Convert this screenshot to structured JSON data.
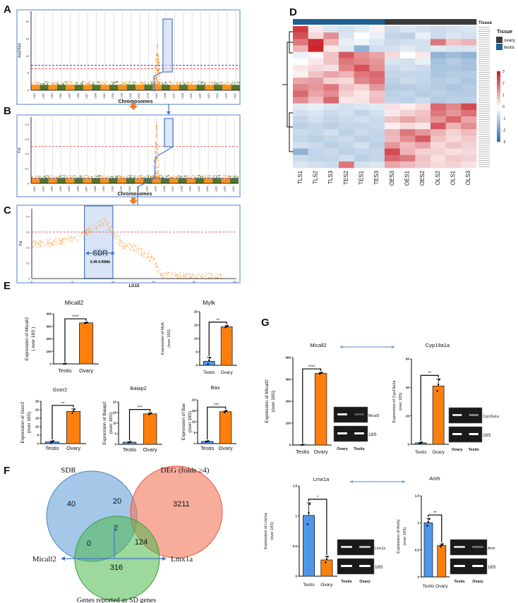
{
  "panel_labels": {
    "A": "A",
    "B": "B",
    "C": "C",
    "D": "D",
    "E": "E",
    "F": "F",
    "G": "G"
  },
  "colors": {
    "testis_bar": "#4d97ea",
    "ovary_bar": "#ff7f0e",
    "manhattan_odd": "#f7931e",
    "manhattan_even": "#55752a",
    "frame": "#6f97d6",
    "highlight": "#c9d9f2",
    "arrow": "#ee7d2a",
    "tissue_testis": "#1f5f93",
    "tissue_ovary": "#3b3b3b",
    "heat_high": "#c81d25",
    "heat_low": "#2166ac"
  },
  "chart_data": [
    {
      "id": "A",
      "type": "scatter",
      "subtype": "manhattan",
      "xlabel": "Chromosomes",
      "ylabel": "-log10(p)",
      "ylim": [
        0,
        23
      ],
      "yticks": [
        0,
        5,
        10,
        15,
        20
      ],
      "categories": [
        "LG01",
        "LG02",
        "LG03",
        "LG04",
        "LG05",
        "LG06",
        "LG07",
        "LG08",
        "LG09",
        "LG10",
        "LG11",
        "LG12",
        "LG13",
        "LG14",
        "LG15",
        "LG16",
        "LG17",
        "LG18",
        "LG19",
        "LG20",
        "LG21",
        "LG22",
        "LG23",
        "LG24"
      ],
      "baseline": 1.6,
      "peak": {
        "chromosome": "LG15",
        "max": 13.5
      },
      "thresholds": [
        {
          "value": 7.3,
          "color": "#2b2bd9"
        },
        {
          "value": 6.3,
          "color": "#e83232"
        }
      ]
    },
    {
      "id": "B",
      "type": "scatter",
      "subtype": "manhattan",
      "xlabel": "Chromosomes",
      "ylabel": "Fst",
      "ylim": [
        0,
        0.45
      ],
      "yticks": [
        0.0,
        0.1,
        0.2,
        0.3,
        0.4
      ],
      "categories": [
        "LG01",
        "LG02",
        "LG03",
        "LG04",
        "LG05",
        "LG06",
        "LG07",
        "LG08",
        "LG09",
        "LG10",
        "LG11",
        "LG12",
        "LG13",
        "LG14",
        "LG15",
        "LG16",
        "LG17",
        "LG18",
        "LG19",
        "LG20",
        "LG21",
        "LG22",
        "LG23",
        "LG24"
      ],
      "baseline": 0.035,
      "peak": {
        "chromosome": "LG15",
        "max": 0.41
      },
      "thresholds": [
        {
          "value": 0.25,
          "color": "#e83232"
        },
        {
          "value": 0.035,
          "color": "#2b2bd9"
        }
      ]
    },
    {
      "id": "C",
      "type": "scatter",
      "xlabel": "LG15",
      "ylabel": "Fst",
      "xlim": [
        0,
        25
      ],
      "xticks": [
        0,
        5,
        10,
        15,
        20,
        25
      ],
      "ylim": [
        0,
        0.45
      ],
      "yticks": [
        0.0,
        0.1,
        0.2,
        0.3,
        0.4
      ],
      "threshold": 0.3,
      "region": {
        "label": "SDR",
        "range_label": "6.49-9.99Mb",
        "start": 6.49,
        "end": 9.99
      },
      "profile": [
        [
          0,
          0.22
        ],
        [
          2,
          0.23
        ],
        [
          4,
          0.24
        ],
        [
          6,
          0.27
        ],
        [
          7,
          0.31
        ],
        [
          8,
          0.34
        ],
        [
          9,
          0.37
        ],
        [
          9.99,
          0.3
        ],
        [
          11,
          0.22
        ],
        [
          13,
          0.19
        ],
        [
          15,
          0.12
        ],
        [
          16,
          0.02
        ],
        [
          20,
          0.01
        ],
        [
          25,
          0.01
        ]
      ]
    },
    {
      "id": "D",
      "type": "heatmap",
      "columns": [
        "TLS1",
        "TLS2",
        "TLS3",
        "TES2",
        "TES1",
        "TES3",
        "OES3",
        "OES1",
        "OES2",
        "OLS2",
        "OLS1",
        "OLS3"
      ],
      "tissue": [
        "testis",
        "testis",
        "testis",
        "testis",
        "testis",
        "testis",
        "ovary",
        "ovary",
        "ovary",
        "ovary",
        "ovary",
        "ovary"
      ],
      "annotation_label": "Tissue",
      "legend_title": "Tissue",
      "legend_items": [
        "ovary",
        "testis"
      ],
      "scale": [
        -3,
        3
      ],
      "scale_ticks": [
        3,
        2,
        1,
        0,
        -1,
        -2,
        -3
      ],
      "values": [
        [
          2.6,
          0.3,
          -0.5,
          -0.6,
          -0.4,
          0.2,
          -0.7,
          -0.5,
          -0.6,
          -0.7,
          -0.6,
          -0.5
        ],
        [
          2.3,
          0.5,
          1.5,
          -0.5,
          0.0,
          -0.3,
          -0.8,
          -0.9,
          -0.3,
          -0.7,
          -0.5,
          -0.6
        ],
        [
          1.8,
          2.8,
          1.0,
          -0.3,
          -0.2,
          -0.5,
          -0.7,
          -0.6,
          -0.6,
          1.8,
          0.8,
          1.0
        ],
        [
          1.0,
          2.9,
          0.3,
          -0.4,
          -1.5,
          -0.6,
          -0.6,
          -0.4,
          -0.6,
          -0.4,
          -0.5,
          -0.5
        ],
        [
          -0.3,
          0.1,
          0.8,
          2.2,
          1.5,
          1.2,
          0.5,
          0.0,
          0.3,
          -1.5,
          -1.3,
          -1.5
        ],
        [
          0.0,
          0.3,
          0.8,
          1.8,
          1.6,
          1.4,
          -0.5,
          -0.6,
          -0.3,
          -1.2,
          -1.0,
          -1.2
        ],
        [
          0.3,
          0.5,
          0.4,
          1.6,
          2.3,
          1.5,
          -0.7,
          -0.6,
          -0.7,
          -1.1,
          -1.1,
          -1.2
        ],
        [
          0.2,
          0.8,
          1.2,
          1.0,
          1.8,
          2.0,
          -0.8,
          -0.8,
          -0.8,
          -1.1,
          -1.0,
          -1.0
        ],
        [
          1.2,
          1.3,
          0.6,
          0.5,
          1.6,
          1.9,
          -0.9,
          -0.7,
          -0.8,
          -1.0,
          -0.9,
          -1.1
        ],
        [
          1.6,
          1.4,
          1.8,
          0.8,
          0.6,
          1.4,
          -1.0,
          -1.0,
          -0.9,
          -1.0,
          -1.1,
          -1.0
        ],
        [
          2.0,
          1.2,
          1.5,
          0.6,
          0.3,
          0.8,
          -0.9,
          -0.8,
          -1.0,
          -0.9,
          -1.0,
          -1.0
        ],
        [
          1.5,
          0.9,
          2.0,
          0.3,
          0.4,
          0.9,
          -0.8,
          -0.9,
          -0.7,
          -1.0,
          -0.9,
          -0.9
        ],
        [
          -0.4,
          -0.3,
          -0.5,
          -0.6,
          -0.5,
          -0.4,
          0.4,
          0.2,
          0.5,
          2.0,
          1.6,
          2.4
        ],
        [
          -0.6,
          -0.5,
          -0.7,
          -0.6,
          -0.8,
          -0.6,
          0.3,
          0.6,
          0.8,
          1.8,
          1.4,
          1.9
        ],
        [
          -0.8,
          -0.6,
          -0.8,
          -0.7,
          -0.6,
          -0.7,
          0.8,
          1.2,
          0.9,
          1.4,
          2.0,
          1.2
        ],
        [
          -0.9,
          -0.8,
          -0.9,
          -0.8,
          -0.8,
          -0.7,
          0.2,
          0.5,
          0.3,
          2.2,
          1.0,
          1.5
        ],
        [
          -0.7,
          -0.8,
          -0.6,
          -0.9,
          -0.7,
          -0.8,
          1.0,
          1.8,
          1.4,
          1.0,
          0.6,
          0.9
        ],
        [
          -0.8,
          -0.9,
          -0.8,
          -0.7,
          -0.9,
          -0.8,
          0.9,
          1.5,
          2.2,
          0.8,
          0.5,
          0.7
        ],
        [
          -0.6,
          -0.7,
          -0.9,
          -0.8,
          -0.6,
          -0.9,
          1.4,
          0.9,
          1.2,
          0.5,
          0.8,
          0.6
        ],
        [
          -1.5,
          -0.8,
          -0.7,
          -0.9,
          -0.8,
          -0.8,
          2.4,
          1.0,
          0.6,
          0.6,
          0.4,
          0.5
        ],
        [
          -0.7,
          -0.8,
          -0.8,
          -0.6,
          -0.9,
          -0.8,
          2.0,
          1.8,
          0.8,
          0.4,
          0.7,
          0.6
        ],
        [
          -0.5,
          -0.6,
          -0.7,
          1.8,
          -0.6,
          -0.5,
          1.2,
          0.9,
          0.7,
          0.5,
          0.6,
          0.4
        ]
      ]
    },
    {
      "id": "E1",
      "type": "bar",
      "title": "Micall2",
      "ylabel": [
        "Expression of Micall2",
        "( over 18S )"
      ],
      "categories": [
        "Testis",
        "Ovary"
      ],
      "values": [
        1,
        328
      ],
      "errors": [
        1,
        4
      ],
      "ylim": [
        0,
        400
      ],
      "yticks": [
        0,
        100,
        200,
        300,
        400
      ],
      "significance": "****"
    },
    {
      "id": "E2",
      "type": "bar",
      "title": "Mylk",
      "ylabel": [
        "Expression of Mylk",
        "(over 18S)"
      ],
      "categories": [
        "Testis",
        "Ovary"
      ],
      "values": [
        1.5,
        14.4
      ],
      "errors": [
        1.5,
        0.4
      ],
      "ylim": [
        0,
        20
      ],
      "yticks": [
        0,
        5,
        10,
        15,
        20
      ],
      "significance": "**"
    },
    {
      "id": "E3",
      "type": "bar",
      "title": "Gosr2",
      "ylabel": [
        "Expression of Gosr2",
        "(over 18S)"
      ],
      "categories": [
        "Testis",
        "Ovary"
      ],
      "values": [
        1,
        19
      ],
      "errors": [
        0.6,
        1.5
      ],
      "ylim": [
        0,
        25
      ],
      "yticks": [
        0,
        5,
        10,
        15,
        20,
        25
      ],
      "significance": "**"
    },
    {
      "id": "E4",
      "type": "bar",
      "title": "Baiap2",
      "ylabel": [
        "Expression of Baiap2",
        "(over 18S)"
      ],
      "categories": [
        "Testis",
        "Ovary"
      ],
      "values": [
        1,
        14.4
      ],
      "errors": [
        0.2,
        0.4
      ],
      "ylim": [
        0,
        20
      ],
      "yticks": [
        0,
        5,
        10,
        15,
        20
      ],
      "significance": "***"
    },
    {
      "id": "E5",
      "type": "bar",
      "title": "Bax",
      "ylabel": [
        "Expression of Bax",
        "(over 18S)"
      ],
      "categories": [
        "Testis",
        "Ovary"
      ],
      "values": [
        1,
        14.6
      ],
      "errors": [
        0.2,
        0.5
      ],
      "ylim": [
        0,
        20
      ],
      "yticks": [
        0,
        5,
        10,
        15,
        20
      ],
      "significance": "***"
    },
    {
      "id": "G1",
      "type": "bar",
      "title": "Micall2",
      "ylabel": [
        "Expression of Micall2",
        "(over 18S)"
      ],
      "categories": [
        "Testis",
        "Ovary"
      ],
      "values": [
        1,
        328
      ],
      "errors": [
        1,
        4
      ],
      "ylim": [
        0,
        400
      ],
      "yticks": [
        0,
        100,
        200,
        300,
        400
      ],
      "significance": "****",
      "gel": {
        "bands": [
          "Micall2",
          "18S"
        ],
        "lanes": [
          "Ovary",
          "Testis"
        ],
        "intensity": [
          [
            0.9,
            0.25
          ],
          [
            1,
            1
          ]
        ]
      }
    },
    {
      "id": "G2",
      "type": "bar",
      "title": "Cyp19a1a",
      "ylabel": [
        "Expression of Cyp19a1a",
        "(over 18S)"
      ],
      "categories": [
        "Testis",
        "Ovary"
      ],
      "values": [
        1,
        41
      ],
      "errors": [
        0.5,
        5
      ],
      "ylim": [
        0,
        60
      ],
      "yticks": [
        0,
        20,
        40,
        60
      ],
      "significance": "**",
      "gel": {
        "bands": [
          "Cyp19a1a",
          "18S"
        ],
        "lanes": [
          "Ovary",
          "Testis"
        ],
        "intensity": [
          [
            0.85,
            0.45
          ],
          [
            1,
            1
          ]
        ]
      }
    },
    {
      "id": "G3",
      "type": "bar",
      "title": "Lmx1a",
      "ylabel": [
        "Expression of Lmx1a",
        "(over 18S)"
      ],
      "categories": [
        "Testis",
        "Ovary"
      ],
      "values": [
        1.01,
        0.27
      ],
      "errors": [
        0.21,
        0.06
      ],
      "ylim": [
        0,
        1.5
      ],
      "yticks": [
        0.0,
        0.5,
        1.0,
        1.5
      ],
      "significance": "*",
      "gel": {
        "bands": [
          "Lmx1a",
          "18S"
        ],
        "lanes": [
          "Testis",
          "Ovary"
        ],
        "intensity": [
          [
            0.85,
            0.7
          ],
          [
            1,
            1
          ]
        ]
      }
    },
    {
      "id": "G4",
      "type": "bar",
      "title": "Amh",
      "ylabel": [
        "Expression of Amhy",
        "(over 18S)"
      ],
      "categories": [
        "Testis",
        "Ovary"
      ],
      "values": [
        1.0,
        0.58
      ],
      "errors": [
        0.08,
        0.03
      ],
      "ylim": [
        0,
        1.5
      ],
      "yticks": [
        0.0,
        0.5,
        1.0,
        1.5
      ],
      "significance": "**",
      "gel": {
        "bands": [
          "Amh",
          "18S"
        ],
        "lanes": [
          "Testis",
          "Ovary"
        ],
        "intensity": [
          [
            0.8,
            0.35
          ],
          [
            1,
            1
          ]
        ]
      }
    }
  ],
  "venn": {
    "sets": [
      {
        "label": "SDR",
        "color": "#5b9bd5"
      },
      {
        "label": "DEG  (folds ≥4)",
        "color": "#f4775a"
      },
      {
        "label": "Genes reported as SD genes",
        "color": "#4cb84c"
      }
    ],
    "regions": {
      "sdr_only": "40",
      "sdr_deg": "20",
      "deg_only": "3211",
      "all": "2",
      "sdr_sd": "0",
      "deg_sd": "124",
      "sd_only": "316"
    },
    "callouts": {
      "left": "Micall2",
      "right": "Lmx1a"
    }
  }
}
